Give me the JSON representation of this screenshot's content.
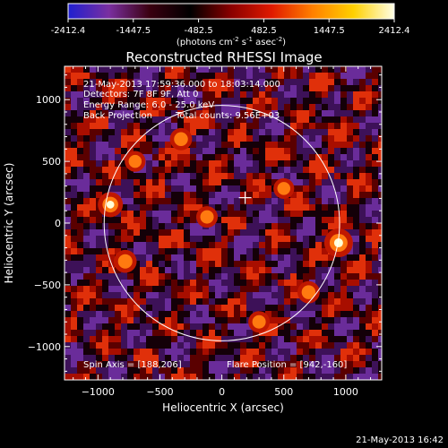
{
  "colorbar": {
    "ticks": [
      "-2412.4",
      "-1447.5",
      "-482.5",
      "482.5",
      "1447.5",
      "2412.4"
    ],
    "units_pre": "(photons cm",
    "units_sup1": "-2",
    "units_mid": " s",
    "units_sup2": "-1",
    "units_post": " asec",
    "units_sup3": "-2",
    "units_end": ")",
    "colors": [
      "#1f1fd0",
      "#7a2fa0",
      "#3a0010",
      "#000000",
      "#8a0000",
      "#e01a00",
      "#ff8000",
      "#ffd000",
      "#ffffe6"
    ]
  },
  "chart_data": {
    "type": "heatmap",
    "title": "Reconstructed RHESSI Image",
    "xlabel": "Heliocentric X (arcsec)",
    "ylabel": "Heliocentric Y (arcsec)",
    "xlim": [
      -1270,
      1290
    ],
    "ylim": [
      -1270,
      1270
    ],
    "xticks": [
      -1000,
      -500,
      0,
      500,
      1000
    ],
    "yticks": [
      -1000,
      -500,
      0,
      500,
      1000
    ],
    "xtick_labels": [
      "−1000",
      "−500",
      "0",
      "500",
      "1000"
    ],
    "ytick_labels": [
      "−1000",
      "−500",
      "0",
      "500",
      "1000"
    ],
    "solar_limb_radius": 950,
    "crosshair": [
      188,
      206
    ],
    "bright_sources": [
      {
        "x": 942,
        "y": -160,
        "level": 1.0
      },
      {
        "x": -900,
        "y": 150,
        "level": 0.75
      },
      {
        "x": -780,
        "y": -310,
        "level": 0.6
      },
      {
        "x": -330,
        "y": 680,
        "level": 0.55
      },
      {
        "x": -120,
        "y": 50,
        "level": 0.5
      },
      {
        "x": 700,
        "y": -560,
        "level": 0.55
      },
      {
        "x": 500,
        "y": 280,
        "level": 0.45
      },
      {
        "x": -700,
        "y": 500,
        "level": 0.45
      },
      {
        "x": 300,
        "y": -800,
        "level": 0.5
      }
    ],
    "annotations": [
      "21-May-2013 17:59:36.000 to 18:03:14.000",
      "Detectors: 7F 8F 9F, Att 0",
      "Energy Range: 6.0 - 25.0 keV",
      "Back Projection",
      "Total counts: 9.56E+03"
    ],
    "spin_axis": "Spin Axis = [188,206]",
    "flare_position": "Flare Position = [942,-160]"
  },
  "timestamp": "21-May-2013 16:42"
}
